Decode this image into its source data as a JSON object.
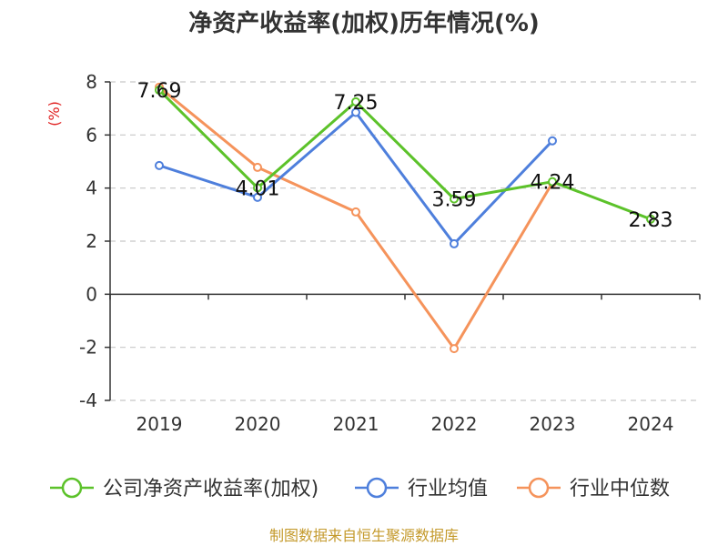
{
  "chart_data": {
    "type": "line",
    "title": "净资产收益率(加权)历年情况(%)",
    "ylabel": "(%)",
    "categories": [
      "2019",
      "2020",
      "2021",
      "2022",
      "2023",
      "2024"
    ],
    "ylim": [
      -4,
      8
    ],
    "yticks": [
      -4,
      -2,
      0,
      2,
      4,
      6,
      8
    ],
    "ytick_labels": [
      "-4",
      "-2",
      "0",
      "2",
      "4",
      "6",
      "8"
    ],
    "grid": true,
    "legend_position": "bottom",
    "series": [
      {
        "name": "公司净资产收益率(加权)",
        "color": "#5cc22a",
        "values": [
          7.69,
          4.01,
          7.25,
          3.59,
          4.24,
          2.83
        ],
        "labels": [
          "7.69",
          "4.01",
          "7.25",
          "3.59",
          "4.24",
          "2.83"
        ]
      },
      {
        "name": "行业均值",
        "color": "#4e7fdc",
        "values": [
          4.85,
          3.65,
          6.85,
          1.9,
          5.78,
          null
        ]
      },
      {
        "name": "行业中位数",
        "color": "#f5935b",
        "values": [
          7.8,
          4.78,
          3.1,
          -2.05,
          4.2,
          null
        ]
      }
    ],
    "source": "制图数据来自恒生聚源数据库",
    "source_color": "#c49a2c",
    "unit_color": "#e02020"
  }
}
